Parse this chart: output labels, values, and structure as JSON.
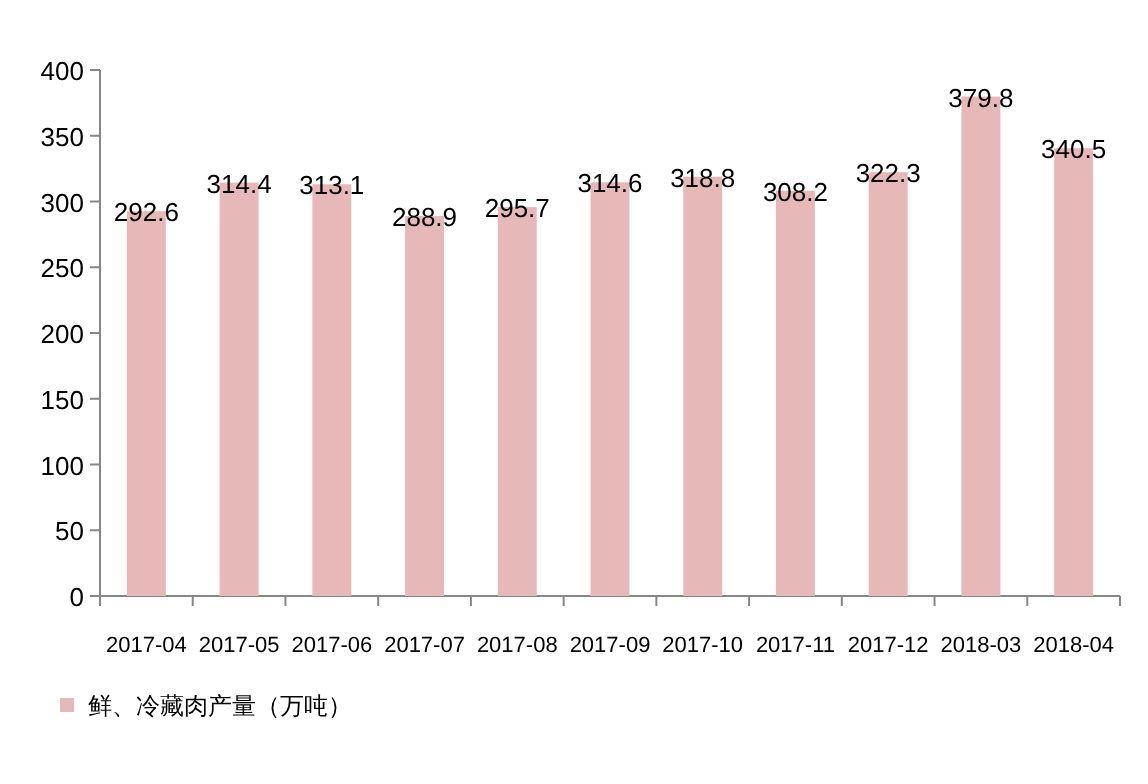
{
  "chart_data": {
    "type": "bar",
    "categories": [
      "2017-04",
      "2017-05",
      "2017-06",
      "2017-07",
      "2017-08",
      "2017-09",
      "2017-10",
      "2017-11",
      "2017-12",
      "2018-03",
      "2018-04"
    ],
    "series": [
      {
        "name": "鲜、冷藏肉产量（万吨）",
        "color": "#e6b9b8",
        "values": [
          292.6,
          314.4,
          313.1,
          288.9,
          295.7,
          314.6,
          318.8,
          308.2,
          322.3,
          379.8,
          340.5
        ]
      }
    ],
    "ylim": [
      0,
      400
    ],
    "yticks": [
      0,
      50,
      100,
      150,
      200,
      250,
      300,
      350,
      400
    ],
    "data_labels": true,
    "legend": "bottom left"
  }
}
